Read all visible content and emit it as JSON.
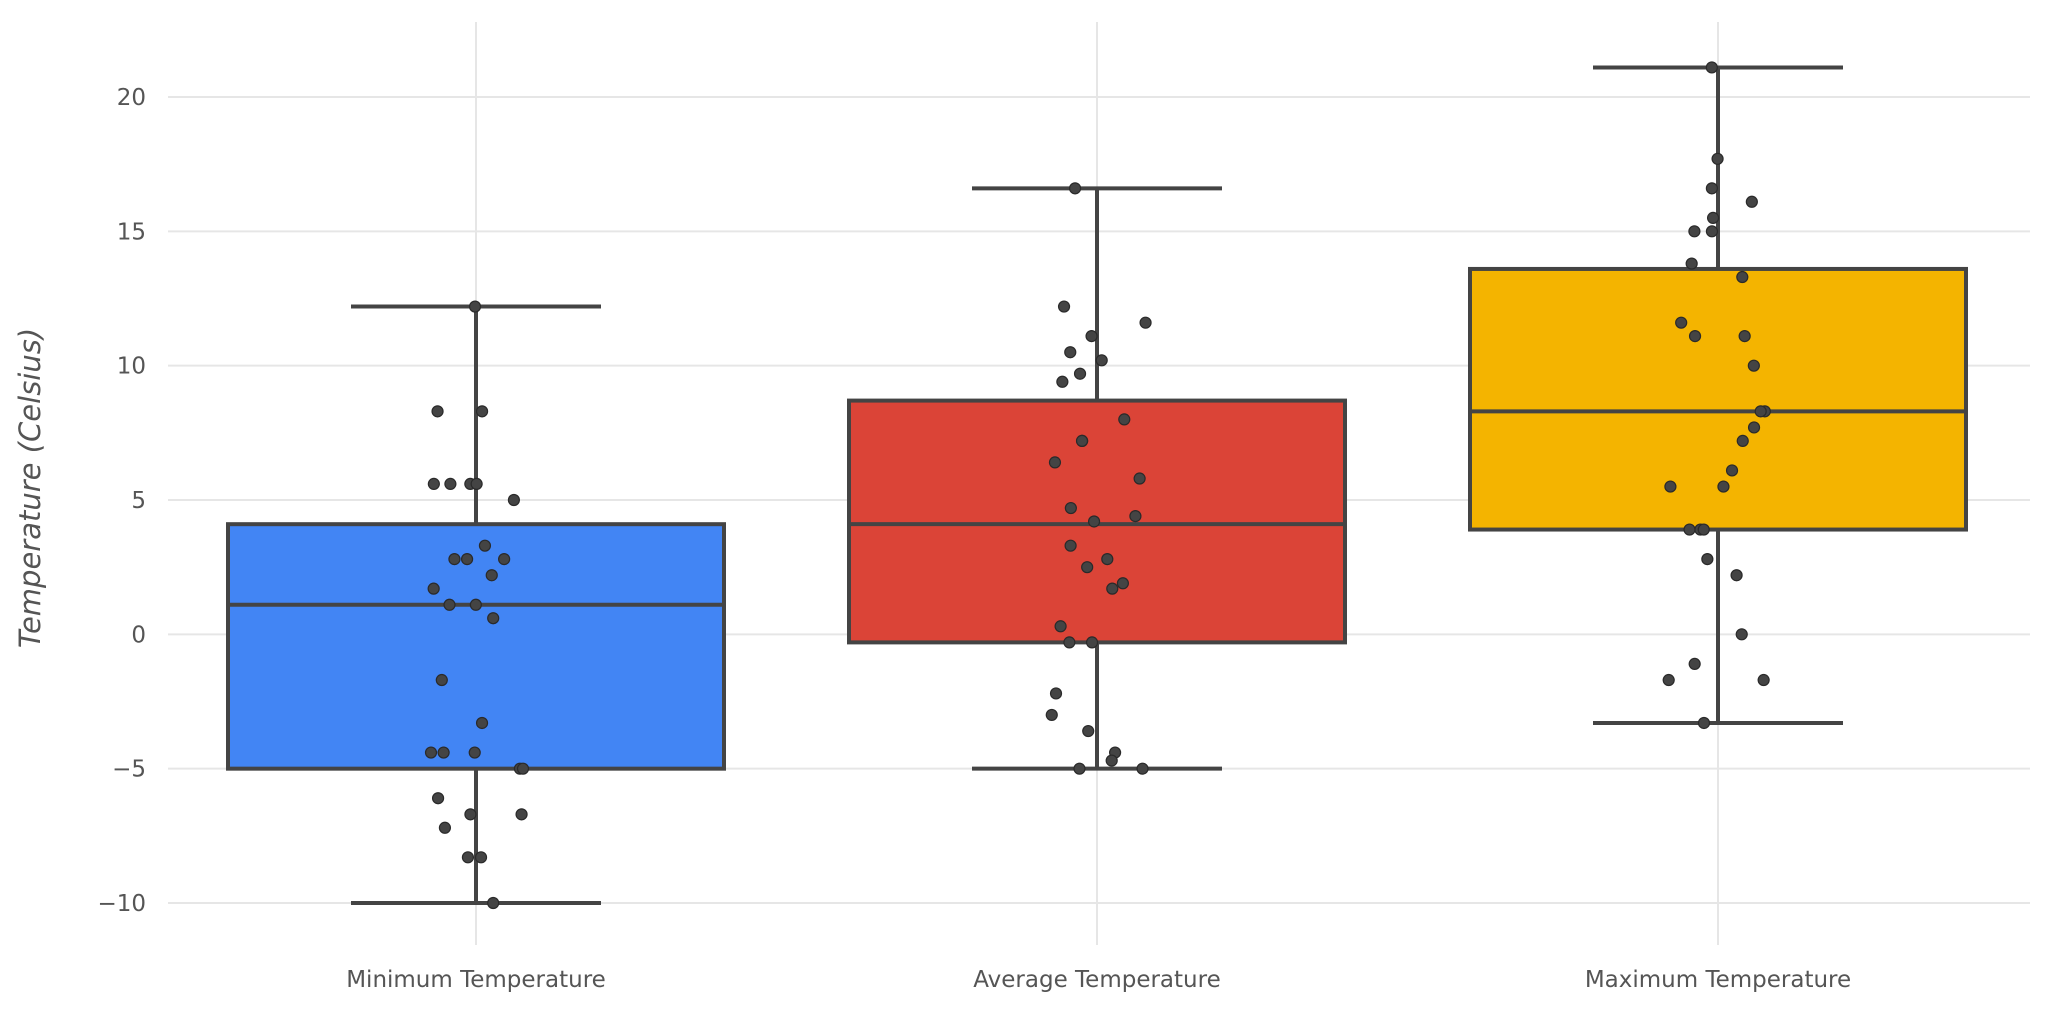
{
  "chart_data": {
    "type": "box",
    "title": "",
    "xlabel": "",
    "ylabel": "Temperature (Celsius)",
    "ylim": [
      -11.5,
      22.5
    ],
    "yticks": [
      -10,
      -5,
      0,
      5,
      10,
      15,
      20
    ],
    "ytick_labels": [
      "−10",
      "−5",
      "0",
      "5",
      "10",
      "15",
      "20"
    ],
    "grid": true,
    "categories": [
      "Minimum Temperature",
      "Average Temperature",
      "Maximum Temperature"
    ],
    "colors": [
      "#4285f4",
      "#db4437",
      "#f4b400"
    ],
    "edge_color": "#444444",
    "point_color": "#444444",
    "boxes": [
      {
        "name": "Minimum Temperature",
        "whisker_low": -10.0,
        "q1": -5.0,
        "median": 1.1,
        "q3": 4.1,
        "whisker_high": 12.2
      },
      {
        "name": "Average Temperature",
        "whisker_low": -5.0,
        "q1": -0.3,
        "median": 4.1,
        "q3": 8.7,
        "whisker_high": 16.6
      },
      {
        "name": "Maximum Temperature",
        "whisker_low": -3.3,
        "q1": 3.9,
        "median": 8.3,
        "q3": 13.6,
        "whisker_high": 21.1
      }
    ],
    "points": [
      [
        12.2,
        8.3,
        8.3,
        5.6,
        5.6,
        5.6,
        5.6,
        5.0,
        3.3,
        2.8,
        2.8,
        2.8,
        2.2,
        1.7,
        1.1,
        1.1,
        0.6,
        -1.7,
        -3.3,
        -4.4,
        -4.4,
        -4.4,
        -5.0,
        -5.0,
        -6.1,
        -6.7,
        -6.7,
        -7.2,
        -8.3,
        -8.3,
        -10.0
      ],
      [
        16.6,
        12.2,
        11.6,
        11.1,
        10.5,
        10.2,
        9.7,
        9.4,
        8.0,
        7.2,
        7.2,
        6.4,
        5.8,
        4.7,
        4.4,
        4.2,
        3.3,
        2.8,
        2.5,
        1.9,
        1.7,
        0.3,
        -0.3,
        -0.3,
        -2.2,
        -3.0,
        -3.6,
        -4.4,
        -4.7,
        -5.0,
        -5.0
      ],
      [
        21.1,
        17.7,
        16.6,
        16.1,
        15.5,
        15.0,
        15.0,
        13.8,
        13.3,
        11.6,
        11.1,
        11.1,
        10.0,
        8.3,
        8.3,
        7.7,
        7.2,
        6.1,
        5.5,
        5.5,
        3.9,
        3.9,
        3.9,
        2.8,
        2.2,
        0.0,
        -1.1,
        -1.7,
        -1.7,
        -3.3
      ]
    ]
  }
}
